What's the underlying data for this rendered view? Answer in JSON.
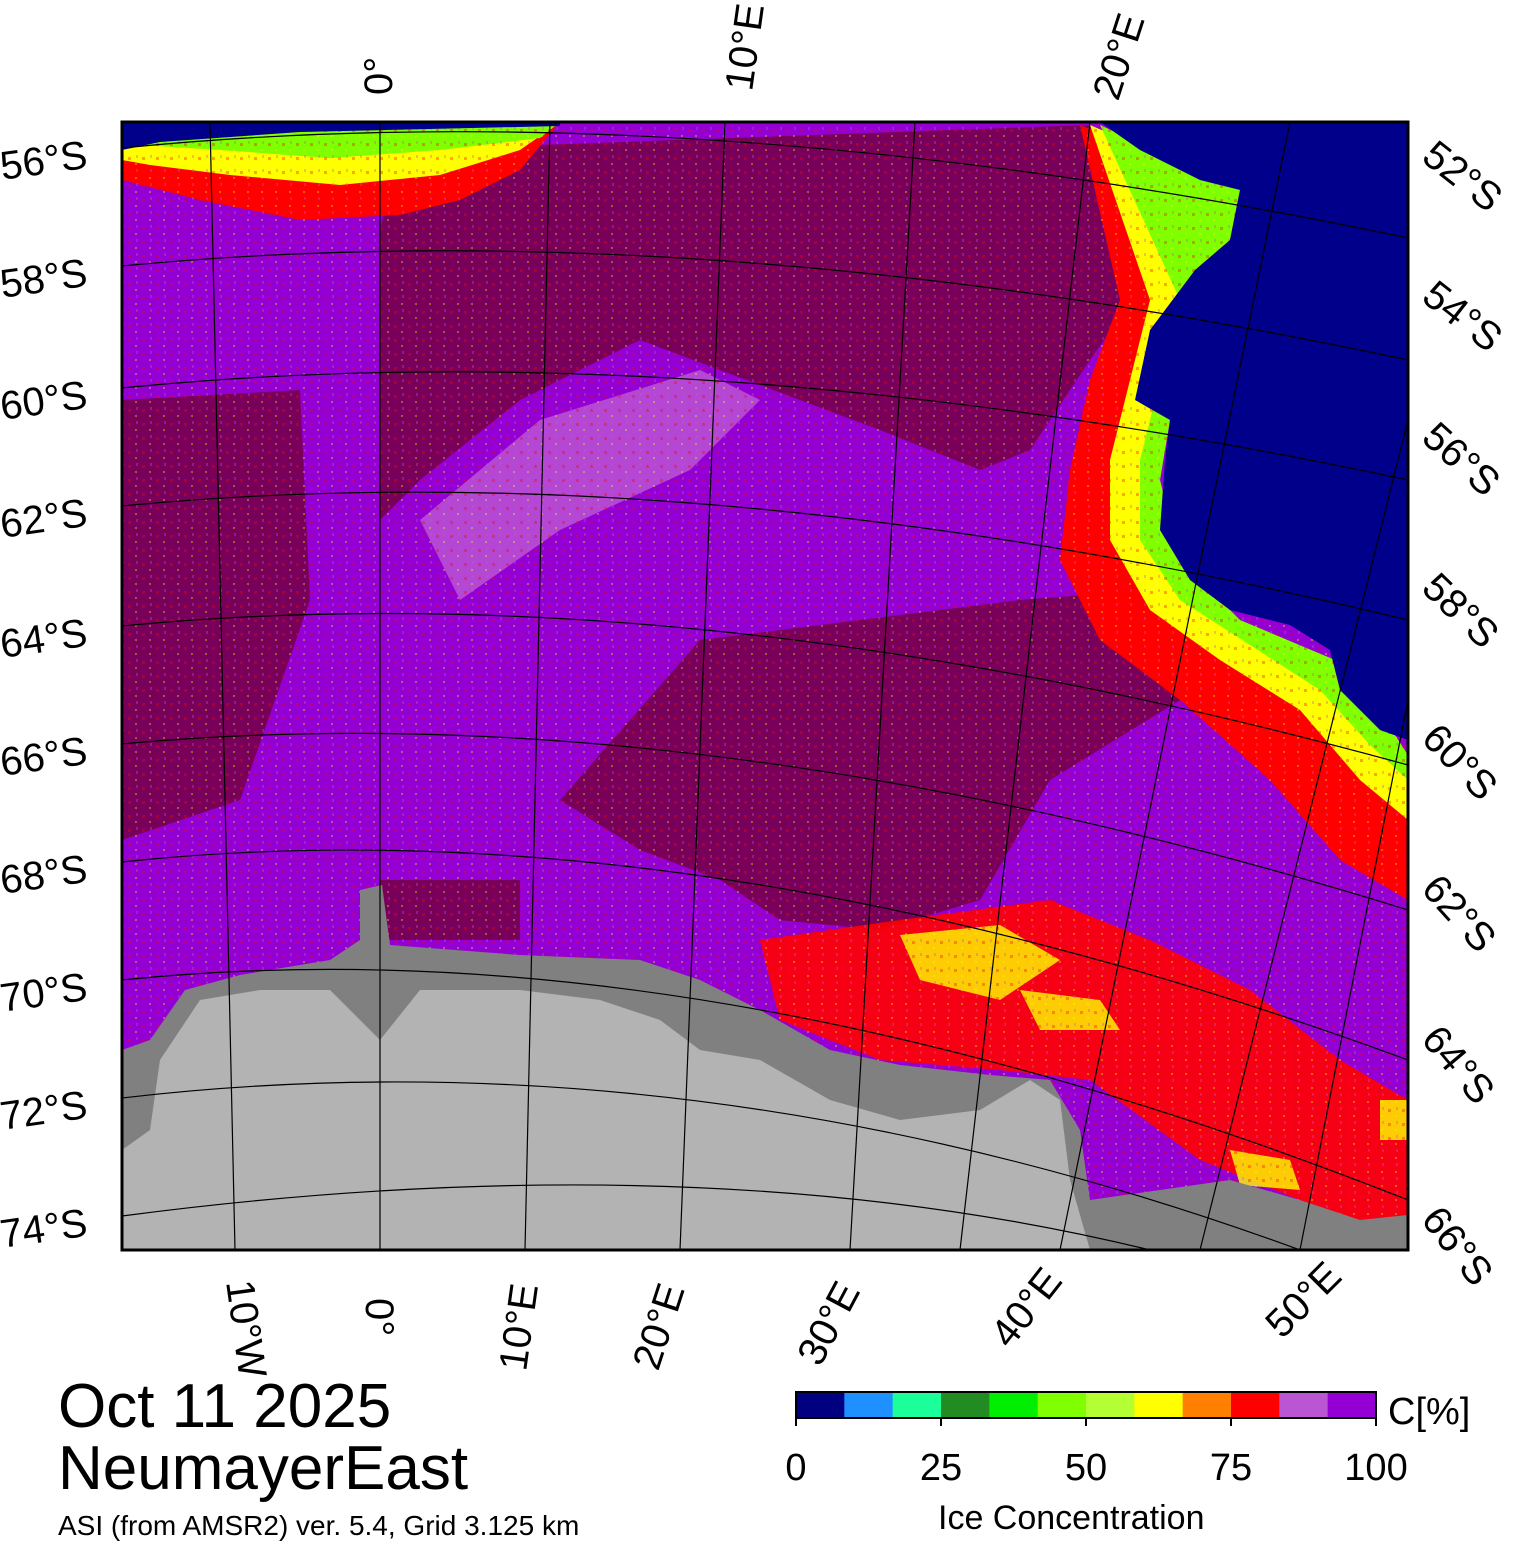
{
  "map": {
    "colors": {
      "ocean": "#00008b",
      "ice_full": "#78005a",
      "ice_high": "#9400d3",
      "ice_midhigh": "#ba55d3",
      "ice_red": "#ff0000",
      "ice_yellow": "#ffff00",
      "ice_green": "#7fff00",
      "land_shelf": "#808080",
      "land": "#b3b3b3",
      "grid_line": "#000000"
    },
    "lat_labels_left": [
      "56°S",
      "58°S",
      "60°S",
      "62°S",
      "64°S",
      "66°S",
      "68°S",
      "70°S",
      "72°S",
      "74°S"
    ],
    "lat_labels_right": [
      "52°S",
      "54°S",
      "56°S",
      "58°S",
      "60°S",
      "62°S",
      "64°S",
      "66°S"
    ],
    "lon_labels_top": [
      "0°",
      "10°E",
      "20°E"
    ],
    "lon_labels_bottom": [
      "10°W",
      "0°",
      "10°E",
      "20°E",
      "30°E",
      "40°E",
      "50°E"
    ]
  },
  "colorbar": {
    "colors": [
      "#000080",
      "#1e90ff",
      "#1aff9a",
      "#228b22",
      "#00ee00",
      "#7fff00",
      "#b3ff33",
      "#ffff00",
      "#ff8000",
      "#ff0000",
      "#ba55d3",
      "#9400d3"
    ],
    "ticks": [
      "0",
      "25",
      "50",
      "75",
      "100"
    ],
    "unit": "C[%]",
    "title": "Ice Concentration"
  },
  "footer": {
    "date": "Oct 11 2025",
    "region": "NeumayerEast",
    "source": "ASI (from AMSR2) ver. 5.4,  Grid 3.125 km"
  }
}
